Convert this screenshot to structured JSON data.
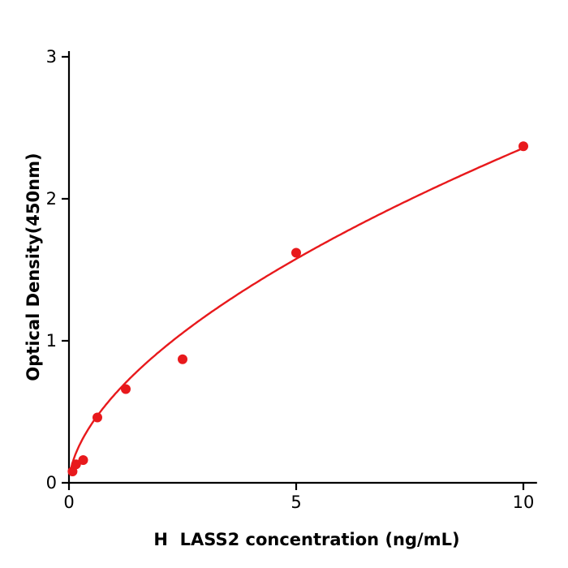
{
  "figure": {
    "background": "#ffffff"
  },
  "chart_data": {
    "type": "scatter",
    "title": "",
    "xlabel": "H  LASS2 concentration (ng/mL)",
    "ylabel": "Optical Density(450nm)",
    "x": [
      0.078,
      0.156,
      0.313,
      0.625,
      1.25,
      2.5,
      5,
      10
    ],
    "y": [
      0.08,
      0.13,
      0.16,
      0.46,
      0.66,
      0.87,
      1.62,
      2.37
    ],
    "xticks": [
      0,
      5,
      10
    ],
    "yticks": [
      0,
      1,
      2,
      3
    ],
    "xlim": [
      0,
      10.3
    ],
    "ylim": [
      0,
      3.04
    ],
    "grid": false,
    "legend": null,
    "point_color": "#e8191c",
    "line_color": "#e8191c",
    "axis_color": "#000000",
    "fit": {
      "type": "power",
      "a": 0.62,
      "b": 0.58,
      "x_start": 0.02,
      "x_end": 10
    }
  }
}
